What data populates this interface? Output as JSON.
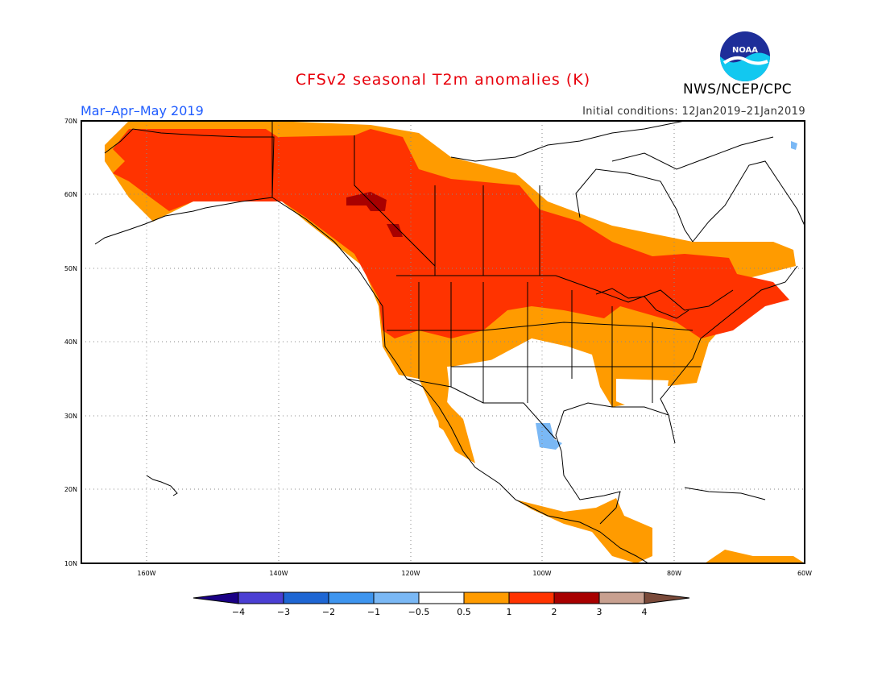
{
  "header": {
    "title": "CFSv2 seasonal T2m anomalies (K)",
    "season": "Mar–Apr–May 2019",
    "initial_conditions": "Initial conditions: 12Jan2019–21Jan2019",
    "agency": "NWS/NCEP/CPC",
    "logo_text": "NOAA"
  },
  "map": {
    "lon_range": [
      -170,
      -60
    ],
    "lat_range": [
      10,
      70
    ],
    "lat_labels": [
      "70N",
      "60N",
      "50N",
      "40N",
      "30N",
      "20N",
      "10N"
    ],
    "lon_labels": [
      "160W",
      "140W",
      "120W",
      "100W",
      "80W",
      "60W"
    ],
    "grid": "dotted"
  },
  "colorbar": {
    "labels": [
      "−4",
      "−3",
      "−2",
      "−1",
      "−0.5",
      "0.5",
      "1",
      "2",
      "3",
      "4"
    ],
    "colors": [
      "#1a0085",
      "#4b3fd3",
      "#1e66d3",
      "#3e95ef",
      "#7ab8f5",
      "#ffffff",
      "#ff9b00",
      "#ff3300",
      "#a80000",
      "#c8a090",
      "#7a4a3a"
    ]
  }
}
